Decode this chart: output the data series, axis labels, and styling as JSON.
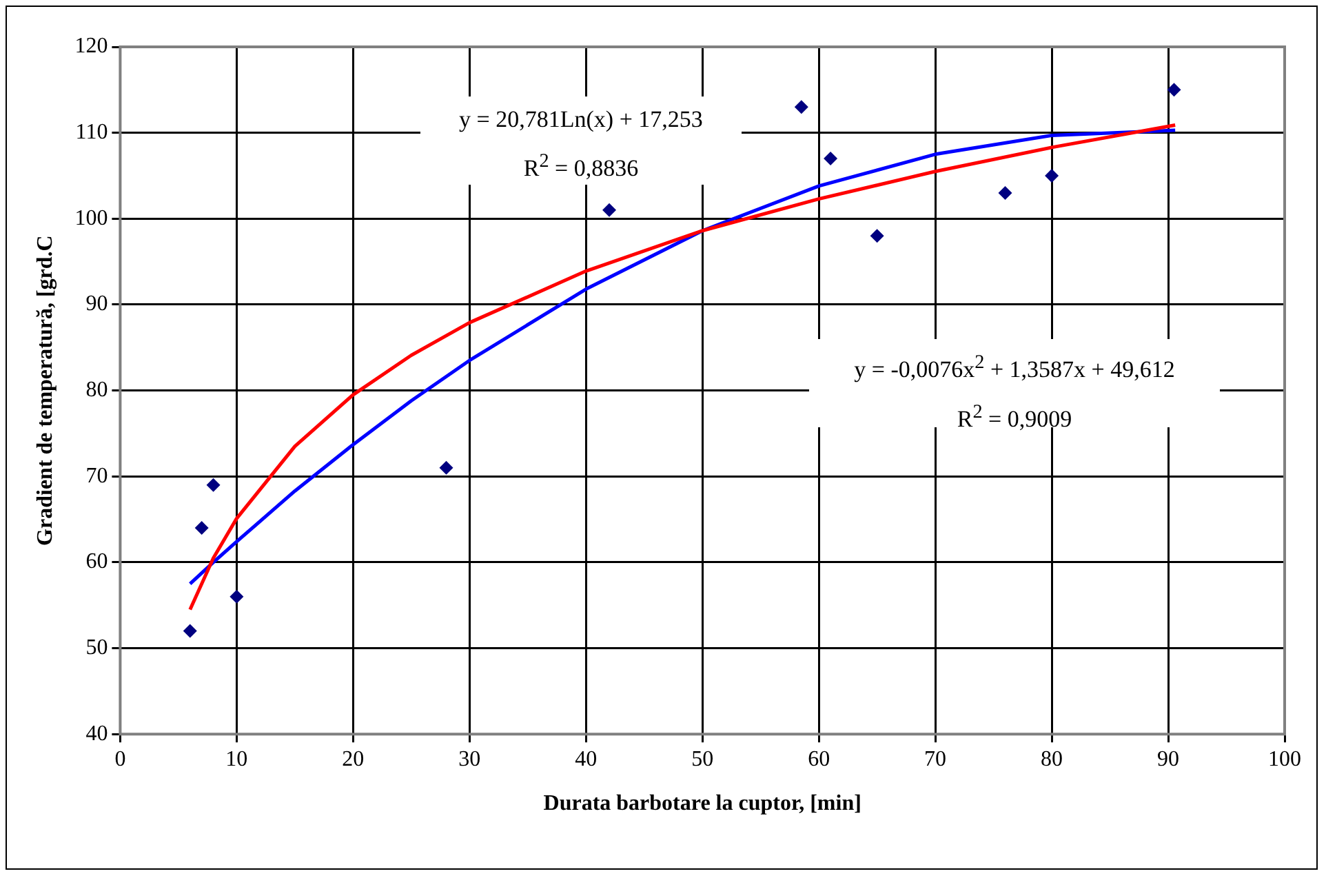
{
  "chart_data": {
    "type": "scatter",
    "xlabel": "Durata barbotare la cuptor, [min]",
    "ylabel": "Gradient de temperatură, [grd.C",
    "xlim": [
      0,
      100
    ],
    "xticks": [
      0,
      10,
      20,
      30,
      40,
      50,
      60,
      70,
      80,
      90,
      100
    ],
    "ylim": [
      40,
      120
    ],
    "yticks": [
      40,
      50,
      60,
      70,
      80,
      90,
      100,
      110,
      120
    ],
    "grid": true,
    "legend": false,
    "marker": "diamond",
    "x": [
      6,
      7,
      8,
      10,
      28,
      42,
      58.5,
      61,
      65,
      76,
      80,
      90.5
    ],
    "series": [
      {
        "color": "#000080",
        "values": [
          52,
          64,
          69,
          56,
          71,
          101,
          113,
          107,
          98,
          103,
          105,
          115
        ]
      },
      {
        "type": "line",
        "color": "#ff0000",
        "marker": "none",
        "x": [
          6,
          8,
          10,
          15,
          20,
          25,
          30,
          40,
          50,
          60,
          70,
          80,
          90.6
        ],
        "values": [
          54.5,
          60.5,
          65.1,
          73.5,
          79.5,
          84.1,
          87.9,
          93.9,
          98.6,
          102.3,
          105.5,
          108.3,
          110.9
        ]
      },
      {
        "type": "line",
        "color": "#0000ff",
        "marker": "none",
        "x": [
          6,
          8,
          10,
          15,
          20,
          25,
          30,
          40,
          50,
          60,
          70,
          80,
          90.6
        ],
        "values": [
          57.5,
          60,
          62.4,
          68.3,
          73.7,
          78.8,
          83.5,
          91.8,
          98.6,
          103.8,
          107.5,
          109.7,
          110.3
        ]
      }
    ],
    "annotations": [
      "y = 20,781Ln(x) + 17,253\nR$^{2}$ = 0,8836",
      "y = -0,0076x$^{2}$ + 1,3587x + 49,612\nR$^{2}$ = 0,9009"
    ]
  }
}
